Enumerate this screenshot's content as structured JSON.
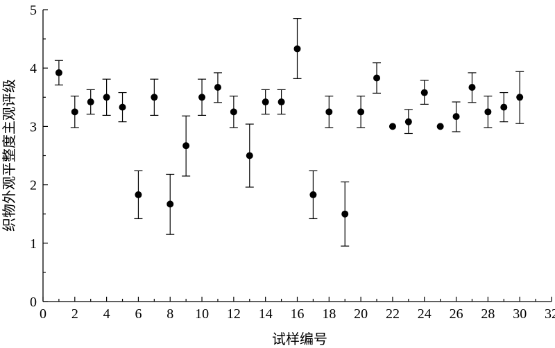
{
  "chart_data": {
    "type": "scatter",
    "xlabel": "试样编号",
    "ylabel": "织物外观平整度主观评级",
    "xlim": [
      0,
      32
    ],
    "ylim": [
      0,
      5
    ],
    "x_ticks": [
      0,
      2,
      4,
      6,
      8,
      10,
      12,
      14,
      16,
      18,
      20,
      22,
      24,
      26,
      28,
      30,
      32
    ],
    "y_ticks": [
      0,
      1,
      2,
      3,
      4,
      5
    ],
    "grid": false,
    "marker_color": "#000000",
    "series": [
      {
        "points": [
          {
            "x": 1,
            "y": 3.92,
            "err_low": 3.71,
            "err_high": 4.13
          },
          {
            "x": 2,
            "y": 3.25,
            "err_low": 2.98,
            "err_high": 3.52
          },
          {
            "x": 3,
            "y": 3.42,
            "err_low": 3.21,
            "err_high": 3.63
          },
          {
            "x": 4,
            "y": 3.5,
            "err_low": 3.19,
            "err_high": 3.81
          },
          {
            "x": 5,
            "y": 3.33,
            "err_low": 3.08,
            "err_high": 3.58
          },
          {
            "x": 6,
            "y": 1.83,
            "err_low": 1.42,
            "err_high": 2.24
          },
          {
            "x": 7,
            "y": 3.5,
            "err_low": 3.19,
            "err_high": 3.81
          },
          {
            "x": 8,
            "y": 1.67,
            "err_low": 1.15,
            "err_high": 2.18
          },
          {
            "x": 9,
            "y": 2.67,
            "err_low": 2.15,
            "err_high": 3.18
          },
          {
            "x": 10,
            "y": 3.5,
            "err_low": 3.19,
            "err_high": 3.81
          },
          {
            "x": 11,
            "y": 3.67,
            "err_low": 3.41,
            "err_high": 3.92
          },
          {
            "x": 12,
            "y": 3.25,
            "err_low": 2.98,
            "err_high": 3.52
          },
          {
            "x": 13,
            "y": 2.5,
            "err_low": 1.96,
            "err_high": 3.04
          },
          {
            "x": 14,
            "y": 3.42,
            "err_low": 3.21,
            "err_high": 3.63
          },
          {
            "x": 15,
            "y": 3.42,
            "err_low": 3.21,
            "err_high": 3.63
          },
          {
            "x": 16,
            "y": 4.33,
            "err_low": 3.82,
            "err_high": 4.85
          },
          {
            "x": 17,
            "y": 1.83,
            "err_low": 1.42,
            "err_high": 2.24
          },
          {
            "x": 18,
            "y": 3.25,
            "err_low": 2.98,
            "err_high": 3.52
          },
          {
            "x": 19,
            "y": 1.5,
            "err_low": 0.95,
            "err_high": 2.05
          },
          {
            "x": 20,
            "y": 3.25,
            "err_low": 2.98,
            "err_high": 3.52
          },
          {
            "x": 21,
            "y": 3.83,
            "err_low": 3.57,
            "err_high": 4.09
          },
          {
            "x": 22,
            "y": 3.0,
            "err_low": 3.0,
            "err_high": 3.0
          },
          {
            "x": 23,
            "y": 3.08,
            "err_low": 2.88,
            "err_high": 3.29
          },
          {
            "x": 24,
            "y": 3.58,
            "err_low": 3.38,
            "err_high": 3.79
          },
          {
            "x": 25,
            "y": 3.0,
            "err_low": 3.0,
            "err_high": 3.0
          },
          {
            "x": 26,
            "y": 3.17,
            "err_low": 2.91,
            "err_high": 3.42
          },
          {
            "x": 27,
            "y": 3.67,
            "err_low": 3.41,
            "err_high": 3.92
          },
          {
            "x": 28,
            "y": 3.25,
            "err_low": 2.98,
            "err_high": 3.52
          },
          {
            "x": 29,
            "y": 3.33,
            "err_low": 3.08,
            "err_high": 3.58
          },
          {
            "x": 30,
            "y": 3.5,
            "err_low": 3.05,
            "err_high": 3.94
          }
        ]
      }
    ]
  }
}
